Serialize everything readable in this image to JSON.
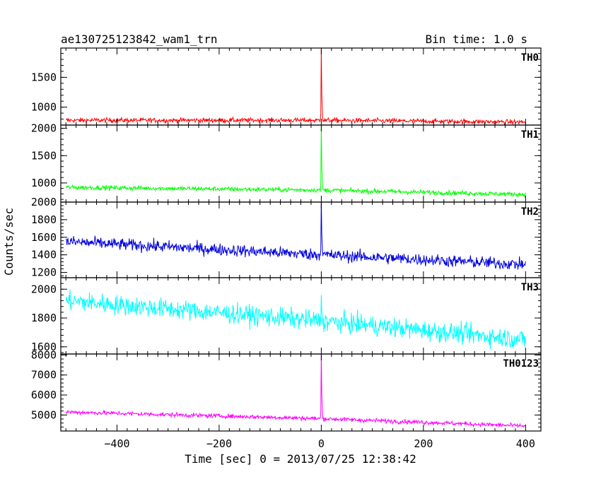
{
  "title_left": "ae130725123842_wam1_trn",
  "title_right": "Bin time: 1.0 s",
  "chart_data": {
    "type": "line",
    "title": "ae130725123842_wam1_trn",
    "subtitle": "Bin time: 1.0 s",
    "xlabel": "Time [sec] 0 = 2013/07/25 12:38:42",
    "ylabel": "Counts/sec",
    "xlim": [
      -510,
      430
    ],
    "xticks": [
      -400,
      -200,
      0,
      200,
      400
    ],
    "xtick_labels": [
      "−400",
      "−200",
      "0",
      "200",
      "400"
    ],
    "grid": false,
    "panels": [
      {
        "name": "TH0",
        "color": "#ff0000",
        "ylim": [
          700,
          1990
        ],
        "yticks": [
          1000,
          1500
        ],
        "ytick_labels": [
          "1000",
          "1500"
        ],
        "trend": [
          [
            -500,
            780
          ],
          [
            0,
            780
          ],
          [
            400,
            750
          ]
        ],
        "noise": 28,
        "peak": {
          "x": 0,
          "value": 2000
        }
      },
      {
        "name": "TH1",
        "color": "#00ff00",
        "ylim": [
          650,
          2060
        ],
        "yticks": [
          1000,
          1500,
          2000
        ],
        "ytick_labels": [
          "1000",
          "1500",
          "2000"
        ],
        "trend": [
          [
            -500,
            920
          ],
          [
            0,
            870
          ],
          [
            400,
            790
          ]
        ],
        "noise": 30,
        "peak": {
          "x": 0,
          "value": 2100
        }
      },
      {
        "name": "TH2",
        "color": "#0000dd",
        "ylim": [
          1140,
          2000
        ],
        "yticks": [
          1200,
          1400,
          1600,
          1800,
          2000
        ],
        "ytick_labels": [
          "1200",
          "1400",
          "1600",
          "1800",
          "2000"
        ],
        "trend": [
          [
            -500,
            1550
          ],
          [
            0,
            1400
          ],
          [
            400,
            1290
          ]
        ],
        "noise": 48,
        "peak": {
          "x": 0,
          "value": 2050
        }
      },
      {
        "name": "TH3",
        "color": "#00ffff",
        "ylim": [
          1550,
          2080
        ],
        "yticks": [
          1600,
          1800,
          2000
        ],
        "ytick_labels": [
          "1600",
          "1800",
          "2000"
        ],
        "trend": [
          [
            -500,
            1920
          ],
          [
            0,
            1780
          ],
          [
            400,
            1650
          ]
        ],
        "noise": 48,
        "peak": {
          "x": 0,
          "value": 1960
        }
      },
      {
        "name": "TH0123",
        "color": "#ff00ff",
        "ylim": [
          4200,
          8050
        ],
        "yticks": [
          5000,
          6000,
          7000,
          8000
        ],
        "ytick_labels": [
          "5000",
          "6000",
          "7000",
          "8000"
        ],
        "trend": [
          [
            -500,
            5150
          ],
          [
            0,
            4820
          ],
          [
            400,
            4450
          ]
        ],
        "noise": 75,
        "peak": {
          "x": 0,
          "value": 8100
        }
      }
    ]
  }
}
